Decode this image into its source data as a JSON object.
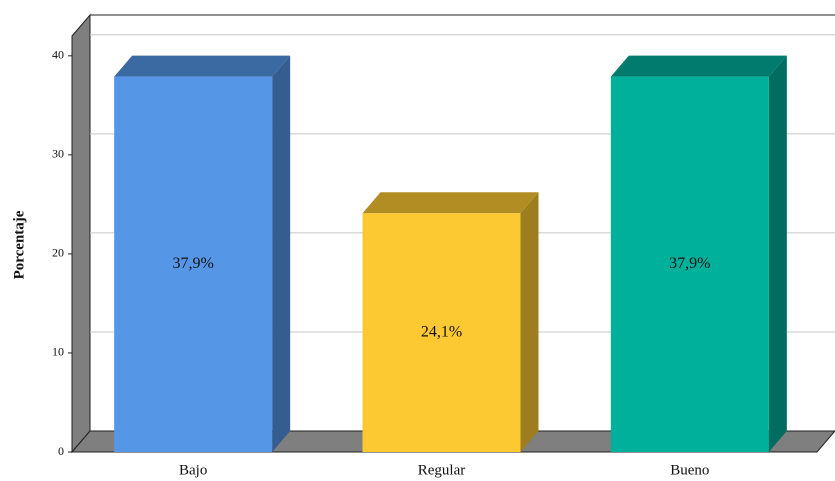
{
  "chart_data": {
    "type": "bar3d",
    "ylabel": "Porcentaje",
    "categories": [
      "Bajo",
      "Regular",
      "Bueno"
    ],
    "values": [
      37.9,
      24.1,
      37.9
    ],
    "value_labels": [
      "37,9%",
      "24,1%",
      "37,9%"
    ],
    "colors": [
      "#5596e6",
      "#fdc932",
      "#00b09b"
    ],
    "ylim": [
      0,
      42
    ],
    "yticks": [
      0,
      10,
      20,
      30,
      40
    ],
    "grid": true
  }
}
